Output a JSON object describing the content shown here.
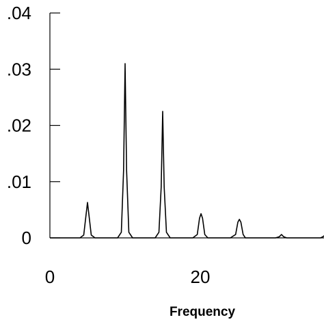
{
  "chart_data": {
    "type": "line",
    "xlabel": "Frequency",
    "ylabel": "",
    "xlim": [
      0,
      37
    ],
    "ylim": [
      0,
      0.04
    ],
    "x_ticks": [
      {
        "value": 0,
        "label": "0"
      },
      {
        "value": 20,
        "label": "20"
      }
    ],
    "y_ticks": [
      {
        "value": 0,
        "label": "0"
      },
      {
        "value": 0.01,
        "label": ".01"
      },
      {
        "value": 0.02,
        "label": ".02"
      },
      {
        "value": 0.03,
        "label": ".03"
      },
      {
        "value": 0.04,
        "label": ".04"
      }
    ],
    "grid": false,
    "series": [
      {
        "x": [
          0,
          4,
          4.5,
          4.8,
          5.0,
          5.2,
          5.5,
          6,
          9,
          9.5,
          9.8,
          10.0,
          10.2,
          10.5,
          11,
          14,
          14.5,
          14.8,
          15.0,
          15.2,
          15.5,
          16,
          19,
          19.6,
          19.9,
          20.1,
          20.3,
          20.6,
          21,
          24,
          24.7,
          25.0,
          25.2,
          25.4,
          25.7,
          26,
          30,
          30.5,
          30.8,
          31.1,
          31.5,
          36,
          36.3,
          36.6,
          37
        ],
        "y": [
          0,
          0,
          0.0005,
          0.004,
          0.0063,
          0.004,
          0.0005,
          0,
          0,
          0.001,
          0.012,
          0.031,
          0.012,
          0.001,
          0,
          0,
          0.001,
          0.009,
          0.0225,
          0.009,
          0.001,
          0,
          0,
          0.0006,
          0.0035,
          0.0043,
          0.0035,
          0.0006,
          0,
          0,
          0.0006,
          0.0028,
          0.0033,
          0.0028,
          0.0006,
          0,
          0,
          0.0002,
          0.0006,
          0.0002,
          0,
          0,
          0.0002,
          0.0005,
          0.0003
        ]
      }
    ]
  }
}
